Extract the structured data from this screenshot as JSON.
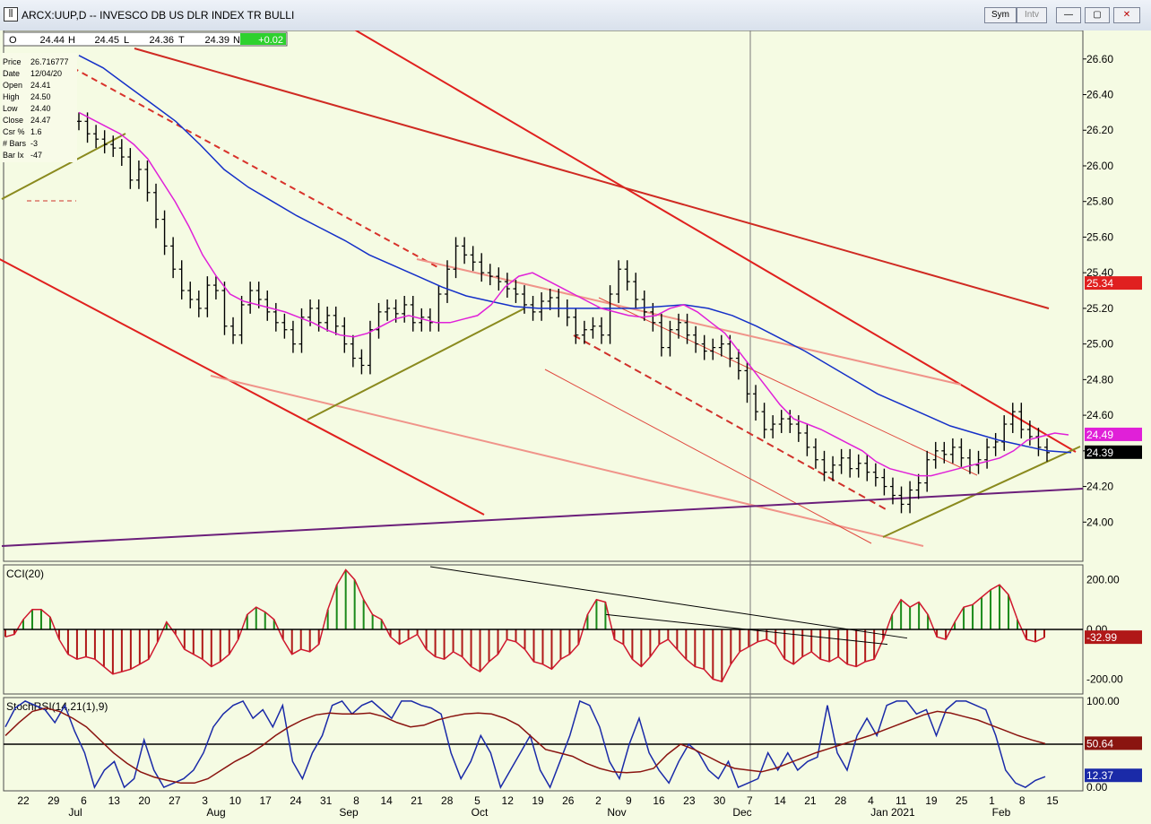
{
  "window": {
    "title": "ARCX:UUP,D -- INVESCO DB US DLR INDEX TR BULLI",
    "buttons": [
      "Sym",
      "Intv"
    ]
  },
  "ohlc_bar": {
    "o_label": "O",
    "o_value": "24.44",
    "h_label": "H",
    "h_value": "24.45",
    "l_label": "L",
    "l_value": "24.36",
    "c_label": "T",
    "c_value": "24.39",
    "n_label": "N",
    "change": "+0.02"
  },
  "info_box": [
    {
      "label": "Price",
      "value": "26.716777"
    },
    {
      "label": "Date",
      "value": "12/04/20"
    },
    {
      "label": "Open",
      "value": "24.41"
    },
    {
      "label": "High",
      "value": "24.50"
    },
    {
      "label": "Low",
      "value": "24.40"
    },
    {
      "label": "Close",
      "value": "24.47"
    },
    {
      "label": "Csr %",
      "value": "1.6"
    },
    {
      "label": "# Bars",
      "value": "-3"
    },
    {
      "label": "Bar Ix",
      "value": "-47"
    }
  ],
  "chart_data": [
    {
      "type": "line",
      "title": "ARCX:UUP,D -- INVESCO DB US DLR INDEX TR BULLI",
      "ylim": [
        23.78,
        26.76
      ],
      "y_ticks": [
        "26.60",
        "26.40",
        "26.20",
        "26.00",
        "25.80",
        "25.60",
        "25.40",
        "25.20",
        "25.00",
        "24.80",
        "24.60",
        "24.40",
        "24.20",
        "24.00"
      ],
      "x_ticks": [
        "22",
        "29",
        "6",
        "13",
        "20",
        "27",
        "3",
        "10",
        "17",
        "24",
        "31",
        "8",
        "14",
        "21",
        "28",
        "5",
        "12",
        "19",
        "26",
        "2",
        "9",
        "16",
        "23",
        "30",
        "7",
        "14",
        "21",
        "28",
        "4",
        "11",
        "19",
        "25",
        "1",
        "8",
        "15"
      ],
      "months": [
        "Jul",
        "Aug",
        "Sep",
        "Oct",
        "Nov",
        "Dec",
        "Jan 2021",
        "Feb"
      ],
      "close": [
        26.25,
        26.18,
        26.15,
        26.12,
        26.1,
        26.05,
        25.92,
        25.98,
        25.85,
        25.7,
        25.55,
        25.42,
        25.3,
        25.25,
        25.2,
        25.33,
        25.3,
        25.1,
        25.05,
        25.22,
        25.3,
        25.25,
        25.18,
        25.12,
        25.08,
        25.0,
        25.15,
        25.2,
        25.12,
        25.16,
        25.1,
        25.0,
        24.92,
        24.88,
        25.08,
        25.18,
        25.2,
        25.17,
        25.22,
        25.12,
        25.15,
        25.12,
        25.28,
        25.42,
        25.55,
        25.5,
        25.46,
        25.4,
        25.38,
        25.35,
        25.31,
        25.28,
        25.22,
        25.18,
        25.24,
        25.26,
        25.2,
        25.15,
        25.05,
        25.08,
        25.1,
        25.05,
        25.28,
        25.42,
        25.35,
        25.25,
        25.18,
        25.12,
        24.98,
        25.08,
        25.12,
        25.05,
        25.0,
        24.96,
        24.98,
        25.0,
        24.92,
        24.85,
        24.72,
        24.62,
        24.52,
        24.55,
        24.58,
        24.55,
        24.5,
        24.42,
        24.35,
        24.28,
        24.32,
        24.36,
        24.3,
        24.33,
        24.28,
        24.25,
        24.2,
        24.15,
        24.1,
        24.18,
        24.22,
        24.35,
        24.4,
        24.38,
        24.42,
        24.36,
        24.32,
        24.35,
        24.42,
        24.45,
        24.55,
        24.62,
        24.52,
        24.48,
        24.42,
        24.39
      ],
      "sma20": [
        26.3,
        26.26,
        26.22,
        26.18,
        26.12,
        26.04,
        25.92,
        25.8,
        25.66,
        25.5,
        25.38,
        25.28,
        25.24,
        25.22,
        25.2,
        25.18,
        25.15,
        25.12,
        25.08,
        25.05,
        25.04,
        25.06,
        25.1,
        25.14,
        25.16,
        25.14,
        25.12,
        25.12,
        25.14,
        25.16,
        25.22,
        25.32,
        25.38,
        25.4,
        25.36,
        25.32,
        25.28,
        25.24,
        25.2,
        25.18,
        25.16,
        25.15,
        25.16,
        25.2,
        25.22,
        25.18,
        25.12,
        25.06,
        24.96,
        24.86,
        24.76,
        24.66,
        24.58,
        24.55,
        24.52,
        24.48,
        24.44,
        24.4,
        24.34,
        24.3,
        24.28,
        24.26,
        24.26,
        24.28,
        24.3,
        24.32,
        24.34,
        24.36,
        24.4,
        24.46,
        24.48,
        24.5,
        24.49
      ],
      "sma50": [
        26.62,
        26.55,
        26.45,
        26.35,
        26.25,
        26.12,
        25.98,
        25.88,
        25.8,
        25.72,
        25.65,
        25.58,
        25.5,
        25.44,
        25.38,
        25.32,
        25.27,
        25.24,
        25.21,
        25.2,
        25.2,
        25.2,
        25.2,
        25.2,
        25.21,
        25.22,
        25.2,
        25.16,
        25.1,
        25.03,
        24.96,
        24.88,
        24.8,
        24.72,
        24.66,
        24.6,
        24.54,
        24.5,
        24.46,
        24.43,
        24.4,
        24.39
      ],
      "ma200_value": "25.34",
      "last_pink_label": "24.49",
      "last_price_label": "24.39"
    },
    {
      "type": "bar",
      "title": "CCI(20)",
      "ylim": [
        -260,
        260
      ],
      "y_ticks": [
        "200.00",
        "0.00",
        "-200.00"
      ],
      "values": [
        -30,
        -20,
        40,
        80,
        80,
        50,
        -40,
        -100,
        -120,
        -110,
        -120,
        -150,
        -180,
        -170,
        -160,
        -140,
        -120,
        -50,
        30,
        -20,
        -80,
        -100,
        -120,
        -150,
        -130,
        -100,
        -40,
        60,
        90,
        70,
        40,
        -40,
        -100,
        -80,
        -90,
        -60,
        80,
        180,
        240,
        200,
        120,
        60,
        40,
        -30,
        -60,
        -40,
        -20,
        -80,
        -110,
        -120,
        -90,
        -110,
        -150,
        -170,
        -130,
        -100,
        -40,
        -50,
        -80,
        -130,
        -140,
        -160,
        -120,
        -100,
        -60,
        60,
        120,
        110,
        -40,
        -60,
        -120,
        -150,
        -110,
        -60,
        -40,
        -80,
        -120,
        -150,
        -160,
        -200,
        -210,
        -140,
        -90,
        -70,
        -50,
        -40,
        -60,
        -120,
        -140,
        -110,
        -90,
        -120,
        -130,
        -110,
        -140,
        -150,
        -130,
        -120,
        -40,
        60,
        120,
        90,
        110,
        60,
        -30,
        -40,
        30,
        90,
        100,
        130,
        160,
        180,
        140,
        40,
        -40,
        -50,
        -32.99
      ],
      "last_label": "-32.99"
    },
    {
      "type": "line",
      "title": "StochRSI(14,21(1),9)",
      "ylim": [
        -4,
        104
      ],
      "y_ticks": [
        "100.00",
        "0.00"
      ],
      "stoch": [
        70,
        92,
        100,
        95,
        90,
        75,
        95,
        65,
        40,
        0,
        20,
        30,
        0,
        10,
        55,
        20,
        0,
        5,
        10,
        20,
        40,
        70,
        85,
        95,
        100,
        80,
        90,
        70,
        95,
        30,
        10,
        40,
        60,
        95,
        100,
        85,
        95,
        100,
        90,
        80,
        100,
        100,
        95,
        92,
        85,
        40,
        10,
        30,
        60,
        40,
        0,
        20,
        40,
        60,
        20,
        0,
        30,
        60,
        100,
        95,
        70,
        30,
        10,
        50,
        80,
        40,
        20,
        5,
        30,
        50,
        40,
        20,
        10,
        30,
        0,
        5,
        10,
        40,
        20,
        40,
        20,
        30,
        35,
        95,
        40,
        20,
        60,
        80,
        60,
        95,
        100,
        100,
        85,
        90,
        60,
        90,
        100,
        100,
        95,
        90,
        60,
        20,
        5,
        0,
        8,
        12.37
      ],
      "signal": [
        60,
        75,
        88,
        92,
        88,
        80,
        70,
        55,
        40,
        28,
        18,
        12,
        8,
        5,
        5,
        10,
        20,
        30,
        38,
        48,
        60,
        70,
        78,
        84,
        86,
        85,
        85,
        86,
        82,
        75,
        70,
        72,
        78,
        82,
        85,
        86,
        85,
        80,
        72,
        58,
        44,
        40,
        36,
        28,
        22,
        18,
        17,
        18,
        22,
        38,
        50,
        44,
        36,
        28,
        22,
        20,
        18,
        22,
        28,
        34,
        40,
        45,
        50,
        55,
        60,
        66,
        72,
        78,
        84,
        88,
        86,
        82,
        78,
        72,
        66,
        60,
        55,
        50.64
      ],
      "signal_label": "50.64",
      "stoch_label": "12.37"
    }
  ]
}
